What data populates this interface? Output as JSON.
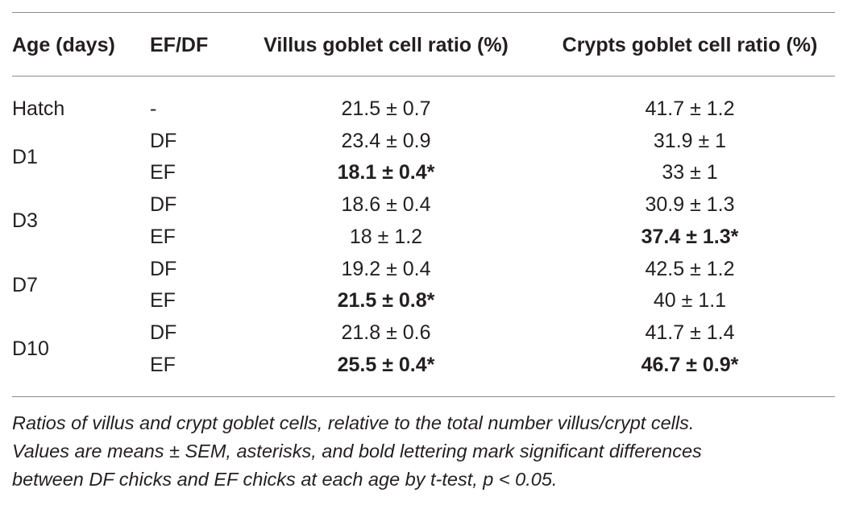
{
  "headers": {
    "age": "Age (days)",
    "efdf": "EF/DF",
    "villus": "Villus goblet cell ratio (%)",
    "crypts": "Crypts goblet cell ratio (%)"
  },
  "age_groups": [
    "Hatch",
    "D1",
    "D3",
    "D7",
    "D10"
  ],
  "rows": [
    {
      "efdf": "-",
      "villus": "21.5 ± 0.7",
      "villus_bold": false,
      "crypts": "41.7 ± 1.2",
      "crypts_bold": false
    },
    {
      "efdf": "DF",
      "villus": "23.4 ± 0.9",
      "villus_bold": false,
      "crypts": "31.9 ± 1",
      "crypts_bold": false
    },
    {
      "efdf": "EF",
      "villus": "18.1 ± 0.4*",
      "villus_bold": true,
      "crypts": "33 ± 1",
      "crypts_bold": false
    },
    {
      "efdf": "DF",
      "villus": "18.6 ± 0.4",
      "villus_bold": false,
      "crypts": "30.9 ± 1.3",
      "crypts_bold": false
    },
    {
      "efdf": "EF",
      "villus": "18 ± 1.2",
      "villus_bold": false,
      "crypts": "37.4 ± 1.3*",
      "crypts_bold": true
    },
    {
      "efdf": "DF",
      "villus": "19.2 ± 0.4",
      "villus_bold": false,
      "crypts": "42.5 ± 1.2",
      "crypts_bold": false
    },
    {
      "efdf": "EF",
      "villus": "21.5 ± 0.8*",
      "villus_bold": true,
      "crypts": "40 ± 1.1",
      "crypts_bold": false
    },
    {
      "efdf": "DF",
      "villus": "21.8 ± 0.6",
      "villus_bold": false,
      "crypts": "41.7 ± 1.4",
      "crypts_bold": false
    },
    {
      "efdf": "EF",
      "villus": "25.5 ± 0.4*",
      "villus_bold": true,
      "crypts": "46.7 ± 0.9*",
      "crypts_bold": true
    }
  ],
  "caption": {
    "line1": "Ratios of villus and crypt goblet cells, relative to the total number villus/crypt cells.",
    "line2": "Values are means ± SEM, asterisks, and bold lettering mark significant differences",
    "line3": "between DF chicks and EF chicks at each age by t-test, p < 0.05."
  },
  "colors": {
    "text": "#231f20",
    "rule": "#8a8a8a"
  }
}
